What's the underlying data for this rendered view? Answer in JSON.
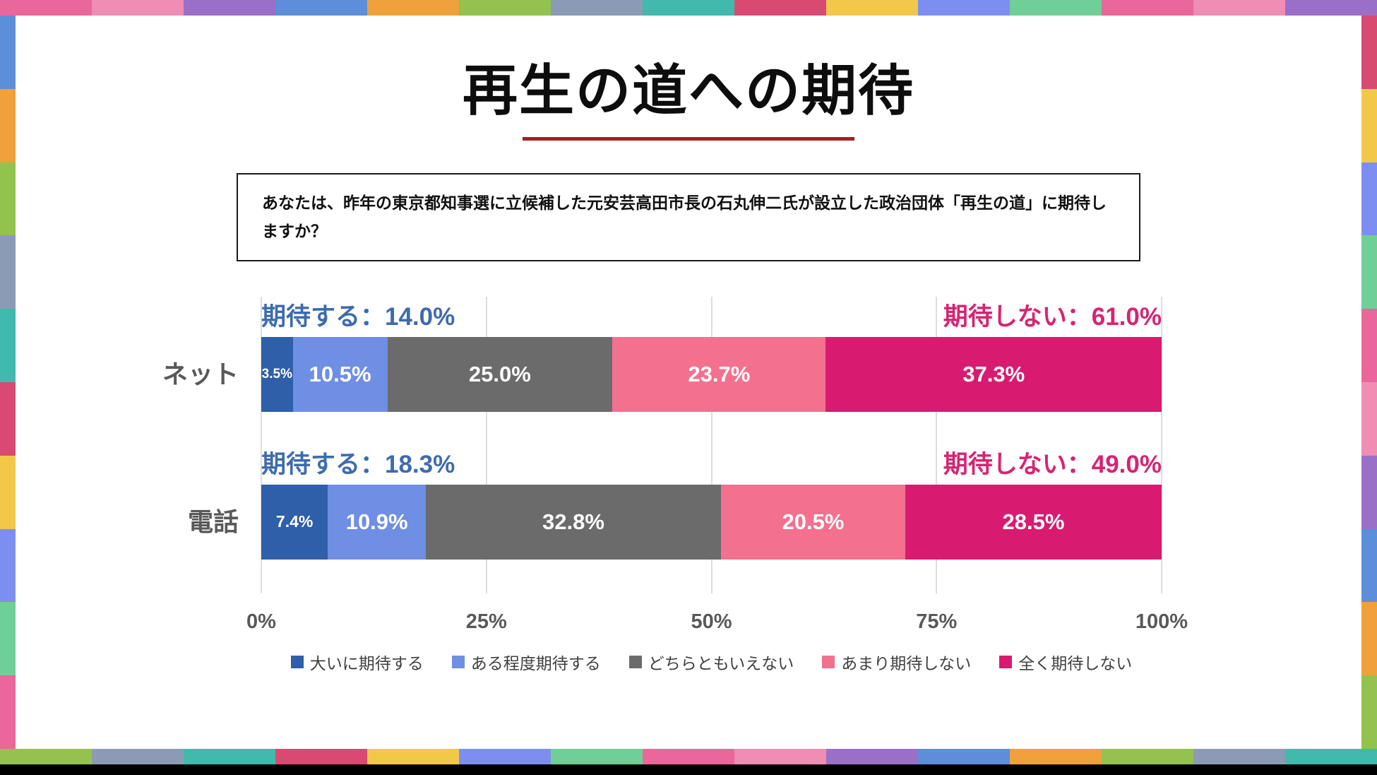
{
  "title": "再生の道への期待",
  "title_underline_color": "#A32020",
  "question": "あなたは、昨年の東京都知事選に立候補した元安芸高田市長の石丸伸二氏が設立した政治団体「再生の道」に期待しますか？",
  "frame": {
    "colors": [
      "#E9679B",
      "#EF8DB4",
      "#9A6FC8",
      "#5D8ED9",
      "#F0A13C",
      "#93C24E",
      "#8C9BB5",
      "#41B9AC",
      "#D84A72",
      "#F2C84B",
      "#7C8FF0",
      "#6FCF97"
    ]
  },
  "chart_data": {
    "type": "bar",
    "stacked": true,
    "orientation": "horizontal",
    "grid": true,
    "legend_position": "bottom",
    "xlim": [
      0,
      100
    ],
    "x_ticks": [
      "0%",
      "25%",
      "50%",
      "75%",
      "100%"
    ],
    "x_tick_values": [
      0,
      25,
      50,
      75,
      100
    ],
    "categories": [
      "ネット",
      "電話"
    ],
    "series": [
      {
        "name": "大いに期待する",
        "color": "#2E5FA8",
        "values": [
          3.5,
          7.4
        ]
      },
      {
        "name": "ある程度期待する",
        "color": "#6E8FE3",
        "values": [
          10.5,
          10.9
        ]
      },
      {
        "name": "どちらともいえない",
        "color": "#6B6B6B",
        "values": [
          25.0,
          32.8
        ]
      },
      {
        "name": "あまり期待しない",
        "color": "#F4708F",
        "values": [
          23.7,
          20.5
        ]
      },
      {
        "name": "全く期待しない",
        "color": "#D81B70",
        "values": [
          37.3,
          28.5
        ]
      }
    ],
    "positive_color": "#3E6BAD",
    "negative_color": "#D62472",
    "row_annotations": [
      {
        "left": "期待する：14.0%",
        "right": "期待しない：61.0%"
      },
      {
        "left": "期待する：18.3%",
        "right": "期待しない：49.0%"
      }
    ]
  }
}
